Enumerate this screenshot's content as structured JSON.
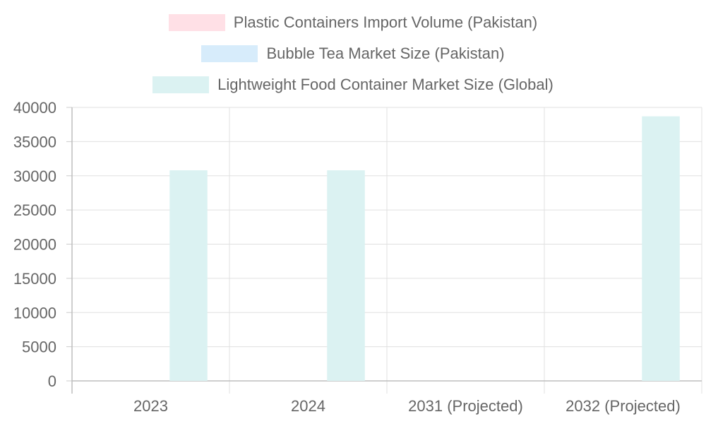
{
  "chart_data": {
    "type": "bar",
    "categories": [
      "2023",
      "2024",
      "2031 (Projected)",
      "2032 (Projected)"
    ],
    "series": [
      {
        "name": "Plastic Containers Import Volume (Pakistan)",
        "values": [
          0,
          0,
          0,
          0
        ],
        "color": "#ffe0e6",
        "legend_label": "Plastic Containers Import Volume (Pakistan)"
      },
      {
        "name": "Bubble Tea Market Size (Pakistan)",
        "values": [
          0,
          0,
          0,
          0
        ],
        "color": "#d7ecfb",
        "legend_label": "Bubble Tea Market Size (Pakistan)"
      },
      {
        "name": "Lightweight Food Container Market Size (Global)",
        "values": [
          30800,
          30800,
          0,
          38700
        ],
        "color": "#dbf2f2",
        "legend_label": "Lightweight Food Container Market Size (Global)"
      }
    ],
    "ylim": [
      0,
      40000
    ],
    "yticks": [
      0,
      5000,
      10000,
      15000,
      20000,
      25000,
      30000,
      35000,
      40000
    ],
    "grid": true,
    "legend_position": "top"
  }
}
